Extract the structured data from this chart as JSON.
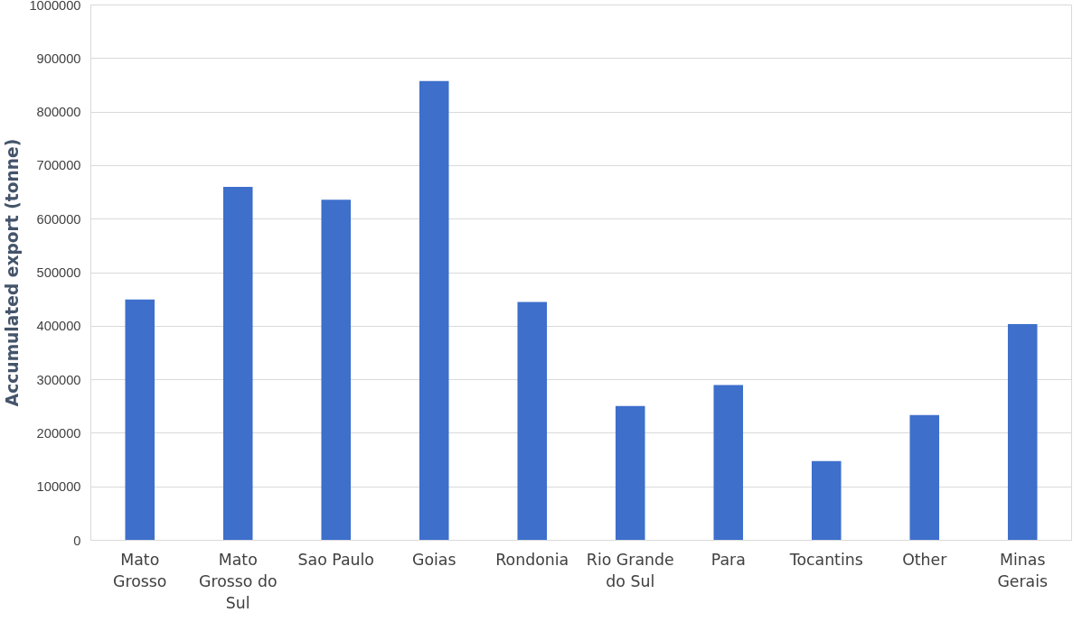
{
  "chart_data": {
    "type": "bar",
    "ylabel": "Accumulated export (tonne)",
    "categories": [
      "Mato Grosso",
      "Mato Grosso do Sul",
      "Sao Paulo",
      "Goias",
      "Rondonia",
      "Rio Grande do Sul",
      "Para",
      "Tocantins",
      "Other",
      "Minas Gerais"
    ],
    "values": [
      450000,
      660000,
      636000,
      858000,
      445000,
      251000,
      290000,
      148000,
      234000,
      404000
    ],
    "color": "#3d6fcb",
    "ylim": [
      0,
      1000000
    ],
    "yticks": [
      0,
      100000,
      200000,
      300000,
      400000,
      500000,
      600000,
      700000,
      800000,
      900000,
      1000000
    ],
    "grid": "y"
  }
}
